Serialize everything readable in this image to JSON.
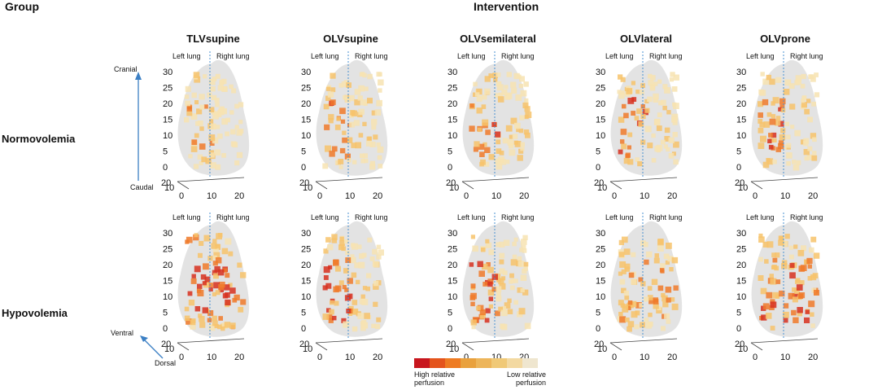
{
  "header": {
    "group": "Group",
    "intervention": "Intervention"
  },
  "columns": [
    "TLVsupine",
    "OLVsupine",
    "OLVsemilateral",
    "OLVlateral",
    "OLVprone"
  ],
  "rows": [
    "Normovolemia",
    "Hypovolemia"
  ],
  "lung_labels": {
    "left": "Left lung",
    "right": "Right lung"
  },
  "axes": {
    "cranial": "Cranial",
    "caudal": "Caudal",
    "ventral": "Ventral",
    "dorsal": "Dorsal",
    "z_ticks_a": [
      "30",
      "25",
      "20",
      "15",
      "10",
      "5",
      "0"
    ],
    "z_ticks_b": [
      "30",
      "20",
      "10",
      "0"
    ],
    "z_ticks_c": [
      "30",
      "25",
      "20",
      "15",
      "10",
      "5",
      "0"
    ],
    "y_ticks": [
      "20",
      "10"
    ],
    "x_ticks": [
      "0",
      "10",
      "20"
    ]
  },
  "legend": {
    "high": "High relative perfusion",
    "low": "Low relative perfusion",
    "colors": [
      "#c8161e",
      "#e4541c",
      "#ee7b22",
      "#e9a13d",
      "#edb55a",
      "#f0c977",
      "#f3d9a1",
      "#efe6cf"
    ]
  },
  "perfusion_colors": {
    "high": "#d7301f",
    "mid": "#f07a2a",
    "low": "#f7c36b",
    "faint": "#f7e3b2",
    "lung": "#dcdcdc"
  },
  "panels": [
    {
      "row": 0,
      "col": 0,
      "intensity": 0.55,
      "bias": "left"
    },
    {
      "row": 0,
      "col": 1,
      "intensity": 0.75,
      "bias": "left"
    },
    {
      "row": 0,
      "col": 2,
      "intensity": 0.85,
      "bias": "left"
    },
    {
      "row": 0,
      "col": 3,
      "intensity": 0.85,
      "bias": "left"
    },
    {
      "row": 0,
      "col": 4,
      "intensity": 0.8,
      "bias": "left"
    },
    {
      "row": 1,
      "col": 0,
      "intensity": 0.9,
      "bias": "both"
    },
    {
      "row": 1,
      "col": 1,
      "intensity": 0.9,
      "bias": "left"
    },
    {
      "row": 1,
      "col": 2,
      "intensity": 0.85,
      "bias": "left"
    },
    {
      "row": 1,
      "col": 3,
      "intensity": 0.6,
      "bias": "both"
    },
    {
      "row": 1,
      "col": 4,
      "intensity": 0.75,
      "bias": "both"
    }
  ]
}
